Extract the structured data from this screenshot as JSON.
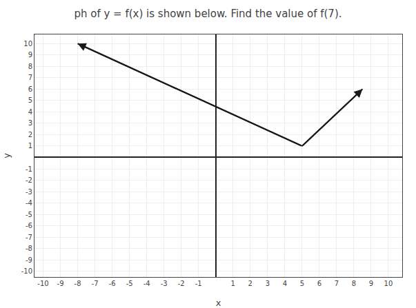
{
  "chart_data": {
    "type": "line",
    "title": "ph of y = f(x) is shown below. Find the value of f(7).",
    "xlabel": "x",
    "ylabel": "y",
    "series": [
      {
        "x": [
          -8,
          5
        ],
        "values": [
          10,
          1
        ],
        "color": "#1a1a1a"
      },
      {
        "x": [
          5,
          8.5
        ],
        "values": [
          1,
          6
        ],
        "color": "#1a1a1a"
      }
    ],
    "xlim": [
      -10.5,
      10.8
    ],
    "ylim": [
      -10.5,
      10.8
    ],
    "xticks": [
      -10,
      -9,
      -8,
      -7,
      -6,
      -5,
      -4,
      -3,
      -2,
      -1,
      1,
      2,
      3,
      4,
      5,
      6,
      7,
      8,
      9,
      10
    ],
    "yticks": [
      -10,
      -9,
      -8,
      -7,
      -6,
      -5,
      -4,
      -3,
      -2,
      -1,
      1,
      2,
      3,
      4,
      5,
      6,
      7,
      8,
      9,
      10
    ],
    "grid": true
  }
}
